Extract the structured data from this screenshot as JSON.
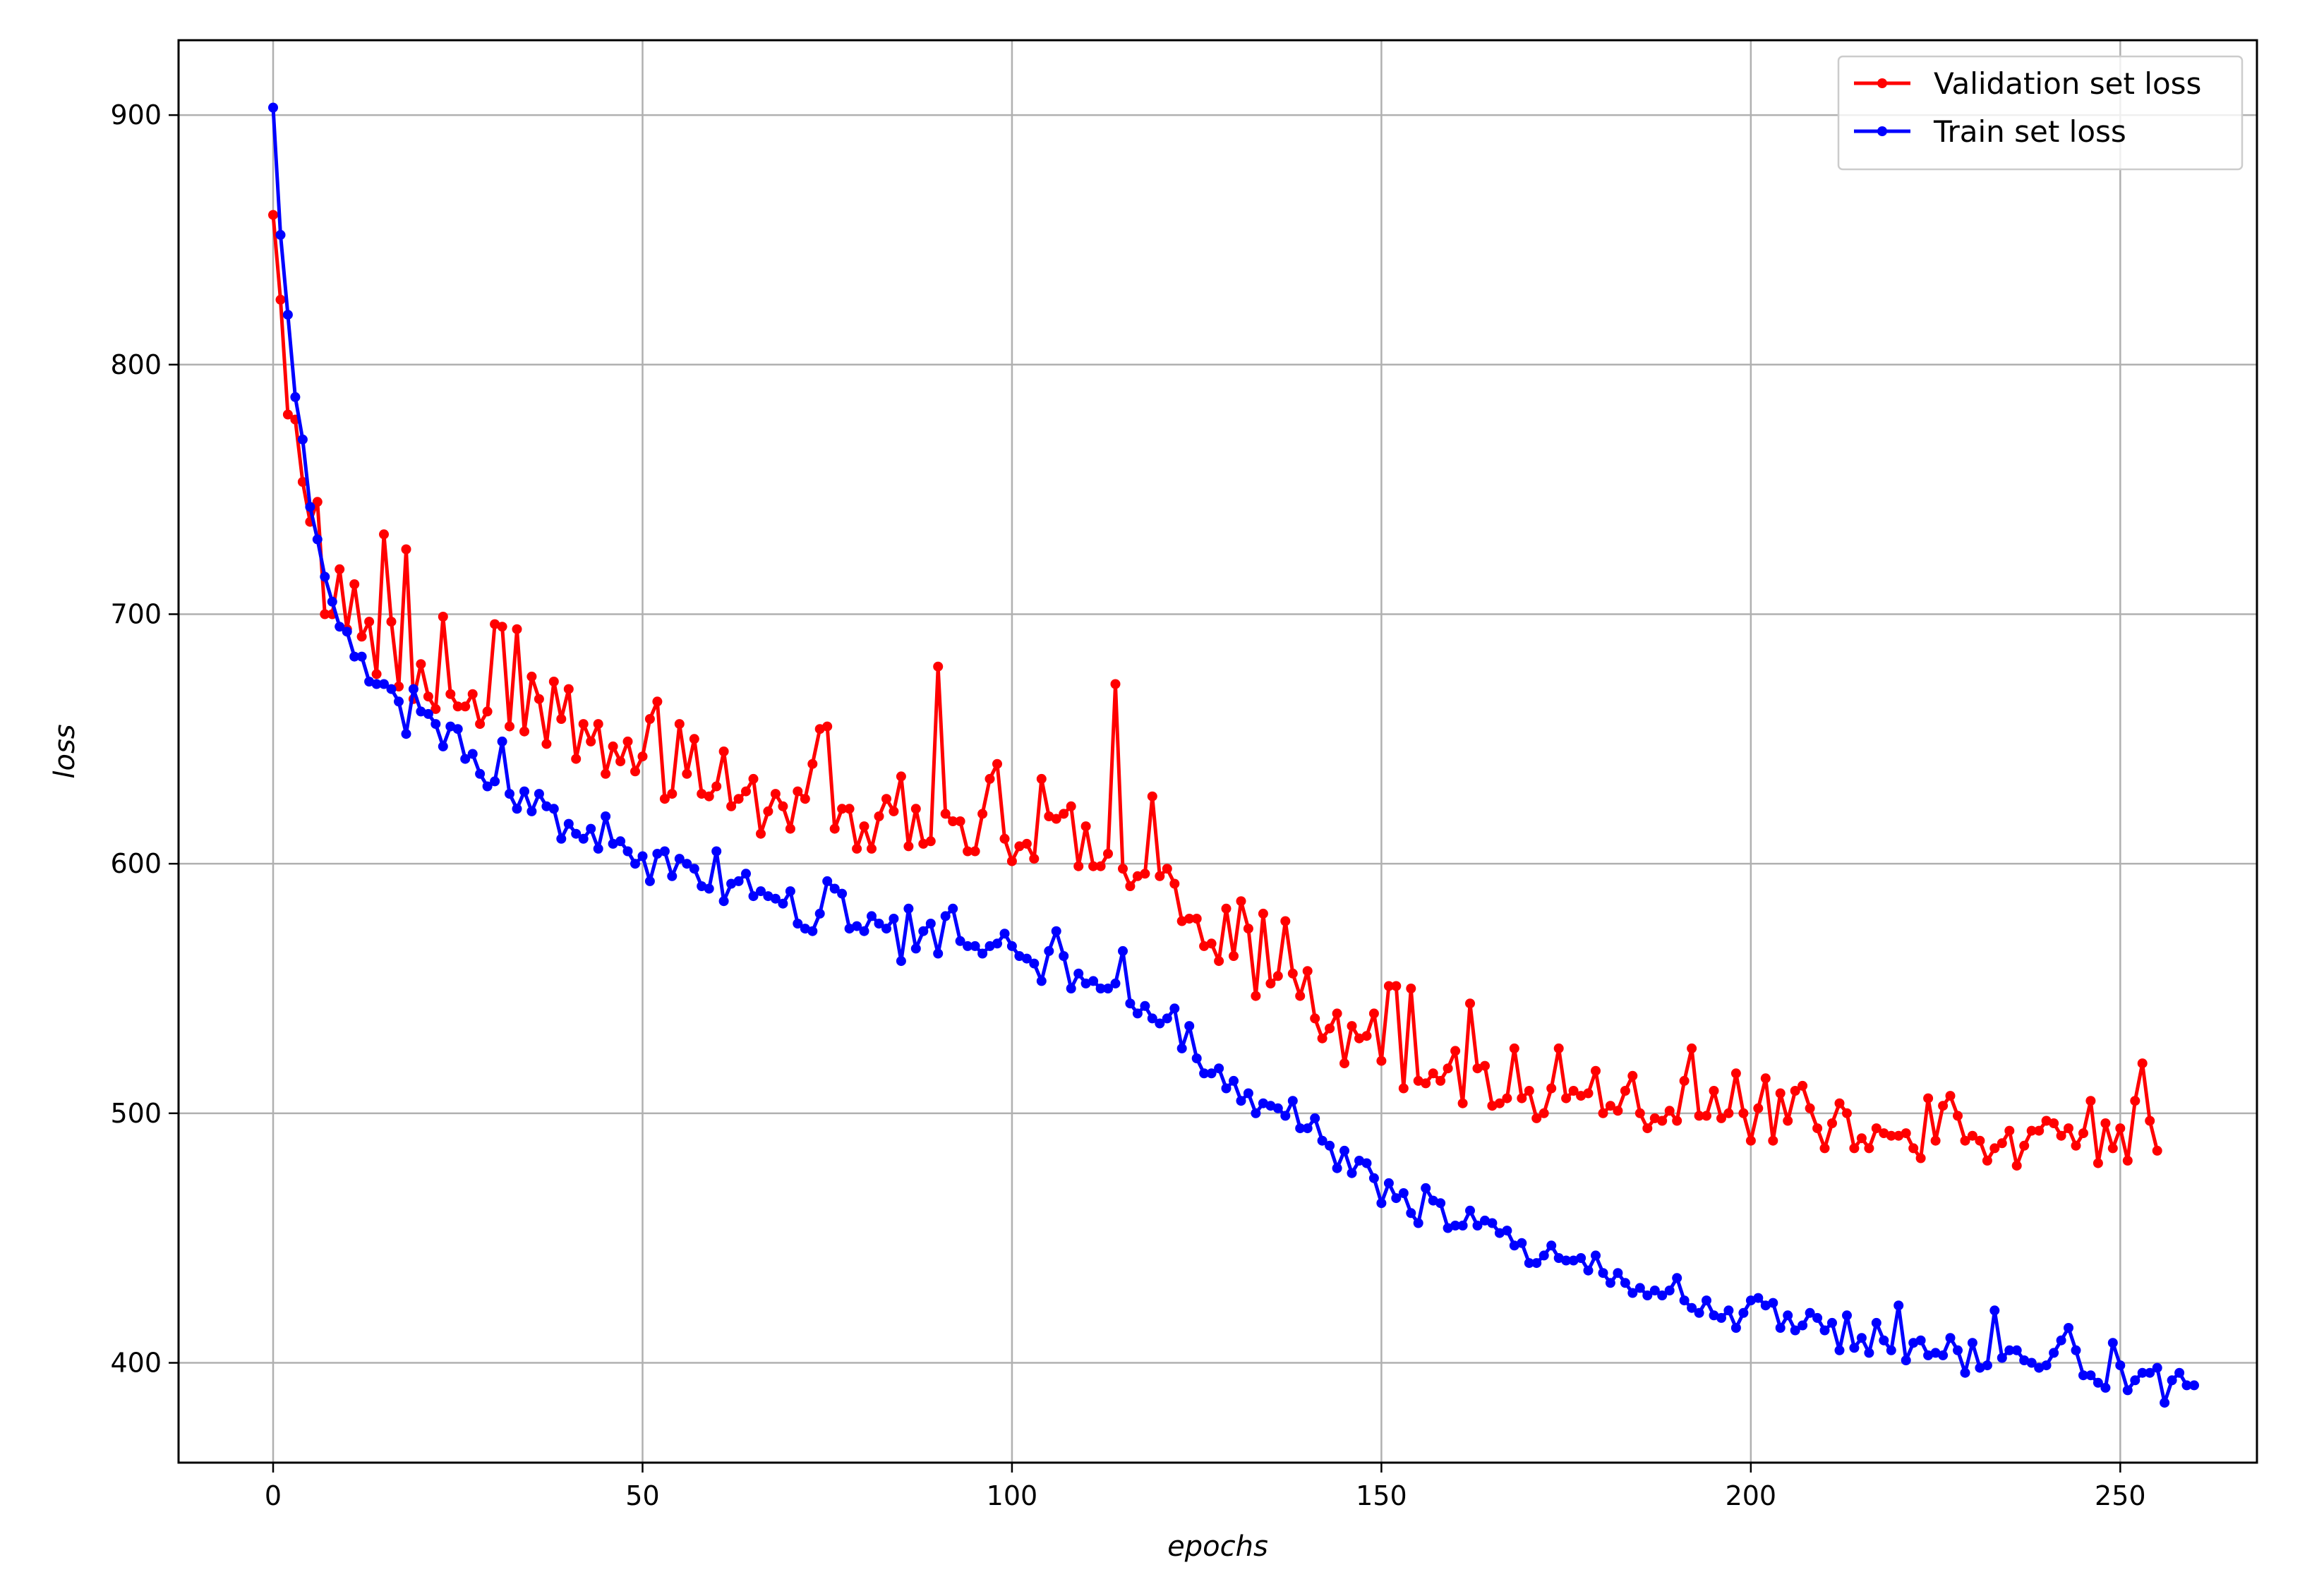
{
  "chart_data": {
    "type": "line",
    "title": "",
    "xlabel": "epochs",
    "ylabel": "loss",
    "xlim": [
      -12.8,
      268.5
    ],
    "ylim": [
      360,
      930
    ],
    "xticks": [
      0,
      50,
      100,
      150,
      200,
      250
    ],
    "yticks": [
      400,
      500,
      600,
      700,
      800,
      900
    ],
    "grid": true,
    "legend_position": "top-right",
    "series": [
      {
        "name": "Validation set loss",
        "color": "#ff0000",
        "marker": "circle",
        "x_start": 0,
        "x_step": 1,
        "values": [
          860,
          826,
          780,
          778,
          753,
          737,
          745,
          700,
          700,
          718,
          694,
          712,
          691,
          697,
          676,
          732,
          697,
          671,
          726,
          666,
          680,
          667,
          662,
          699,
          668,
          663,
          663,
          668,
          656,
          661,
          696,
          695,
          655,
          694,
          653,
          675,
          666,
          648,
          673,
          658,
          670,
          642,
          656,
          649,
          656,
          636,
          647,
          641,
          649,
          637,
          643,
          658,
          665,
          626,
          628,
          656,
          636,
          650,
          628,
          627,
          631,
          645,
          623,
          626,
          629,
          634,
          612,
          621,
          628,
          623,
          614,
          629,
          626,
          640,
          654,
          655,
          614,
          622,
          622,
          606,
          615,
          606,
          619,
          626,
          621,
          635,
          607,
          622,
          608,
          609,
          679,
          620,
          617,
          617,
          605,
          605,
          620,
          634,
          640,
          610,
          601,
          607,
          608,
          602,
          634,
          619,
          618,
          620,
          623,
          599,
          615,
          599,
          599,
          604,
          672,
          598,
          591,
          595,
          596,
          627,
          595,
          598,
          592,
          577,
          578,
          578,
          567,
          568,
          561,
          582,
          563,
          585,
          574,
          547,
          580,
          552,
          555,
          577,
          556,
          547,
          557,
          538,
          530,
          534,
          540,
          520,
          535,
          530,
          531,
          540,
          521,
          551,
          551,
          510,
          550,
          513,
          512,
          516,
          513,
          518,
          525,
          504,
          544,
          518,
          519,
          503,
          504,
          506,
          526,
          506,
          509,
          498,
          500,
          510,
          526,
          506,
          509,
          507,
          508,
          517,
          500,
          503,
          501,
          509,
          515,
          500,
          494,
          498,
          497,
          501,
          497,
          513,
          526,
          499,
          499,
          509,
          498,
          500,
          516,
          500,
          489,
          502,
          514,
          489,
          508,
          497,
          509,
          511,
          502,
          494,
          486,
          496,
          504,
          500,
          486,
          490,
          486,
          494,
          492,
          491,
          491,
          492,
          486,
          482,
          506,
          489,
          503,
          507,
          499,
          489,
          491,
          489,
          481,
          486,
          488,
          493,
          479,
          487,
          493,
          493,
          497,
          496,
          491,
          494,
          487,
          492,
          505,
          480,
          496,
          486,
          494,
          481,
          505,
          520,
          497,
          485
        ]
      },
      {
        "name": "Train set loss",
        "color": "#0000ff",
        "marker": "circle",
        "x_start": 0,
        "x_step": 1,
        "values": [
          903,
          852,
          820,
          787,
          770,
          743,
          730,
          715,
          705,
          695,
          693,
          683,
          683,
          673,
          672,
          672,
          670,
          665,
          652,
          670,
          661,
          660,
          656,
          647,
          655,
          654,
          642,
          644,
          636,
          631,
          633,
          649,
          628,
          622,
          629,
          621,
          628,
          623,
          622,
          610,
          616,
          612,
          610,
          614,
          606,
          619,
          608,
          609,
          605,
          600,
          603,
          593,
          604,
          605,
          595,
          602,
          600,
          598,
          591,
          590,
          605,
          585,
          592,
          593,
          596,
          587,
          589,
          587,
          586,
          584,
          589,
          576,
          574,
          573,
          580,
          593,
          590,
          588,
          574,
          575,
          573,
          579,
          576,
          574,
          578,
          561,
          582,
          566,
          573,
          576,
          564,
          579,
          582,
          569,
          567,
          567,
          564,
          567,
          568,
          572,
          567,
          563,
          562,
          560,
          553,
          565,
          573,
          563,
          550,
          556,
          552,
          553,
          550,
          550,
          552,
          565,
          544,
          540,
          543,
          538,
          536,
          538,
          542,
          526,
          535,
          522,
          516,
          516,
          518,
          510,
          513,
          505,
          508,
          500,
          504,
          503,
          502,
          499,
          505,
          494,
          494,
          498,
          489,
          487,
          478,
          485,
          476,
          481,
          480,
          474,
          464,
          472,
          466,
          468,
          460,
          456,
          470,
          465,
          464,
          454,
          455,
          455,
          461,
          455,
          457,
          456,
          452,
          453,
          447,
          448,
          440,
          440,
          443,
          447,
          442,
          441,
          441,
          442,
          437,
          443,
          436,
          432,
          436,
          432,
          428,
          430,
          427,
          429,
          427,
          429,
          434,
          425,
          422,
          420,
          425,
          419,
          418,
          421,
          414,
          420,
          425,
          426,
          423,
          424,
          414,
          419,
          413,
          415,
          420,
          418,
          413,
          416,
          405,
          419,
          406,
          410,
          404,
          416,
          409,
          405,
          423,
          401,
          408,
          409,
          403,
          404,
          403,
          410,
          405,
          396,
          408,
          398,
          399,
          421,
          402,
          405,
          405,
          401,
          400,
          398,
          399,
          404,
          409,
          414,
          405,
          395,
          395,
          392,
          390,
          408,
          399,
          389,
          393,
          396,
          396,
          398,
          384,
          393,
          396,
          391,
          391
        ]
      }
    ]
  }
}
